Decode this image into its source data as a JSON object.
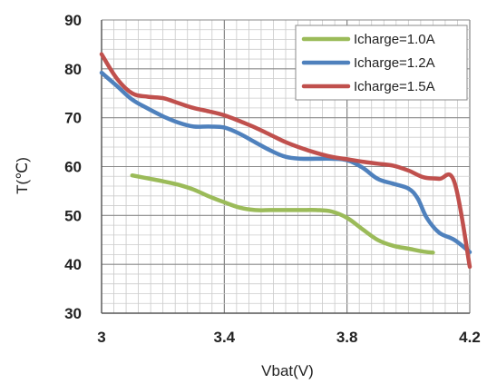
{
  "chart_data": {
    "type": "line",
    "xlabel": "Vbat(V)",
    "ylabel": "T(℃)",
    "xlim": [
      3.0,
      4.2
    ],
    "ylim": [
      30,
      90
    ],
    "x_ticks": [
      "3",
      "3.4",
      "3.8",
      "4.2"
    ],
    "y_ticks": [
      "30",
      "40",
      "50",
      "60",
      "70",
      "80",
      "90"
    ],
    "grid": true,
    "legend_position": "top-right",
    "series": [
      {
        "name": "Icharge=1.0A",
        "color": "#9BBB59",
        "x": [
          3.1,
          3.15,
          3.2,
          3.25,
          3.3,
          3.35,
          3.4,
          3.45,
          3.5,
          3.55,
          3.6,
          3.65,
          3.7,
          3.75,
          3.8,
          3.85,
          3.9,
          3.95,
          4.0,
          4.05,
          4.08
        ],
        "y": [
          58.2,
          57.6,
          57.0,
          56.3,
          55.3,
          53.9,
          52.7,
          51.6,
          51.1,
          51.1,
          51.1,
          51.1,
          51.1,
          50.8,
          49.5,
          47.2,
          45.0,
          43.8,
          43.2,
          42.6,
          42.4
        ]
      },
      {
        "name": "Icharge=1.2A",
        "color": "#4F81BD",
        "x": [
          3.0,
          3.05,
          3.1,
          3.15,
          3.2,
          3.25,
          3.3,
          3.35,
          3.4,
          3.45,
          3.5,
          3.55,
          3.6,
          3.65,
          3.7,
          3.75,
          3.8,
          3.85,
          3.9,
          3.95,
          4.0,
          4.03,
          4.06,
          4.1,
          4.15,
          4.2
        ],
        "y": [
          79.2,
          76.5,
          73.7,
          71.9,
          70.3,
          69.0,
          68.2,
          68.2,
          68.0,
          66.7,
          65.0,
          63.3,
          62.0,
          61.6,
          61.6,
          61.6,
          61.3,
          59.8,
          57.5,
          56.5,
          55.5,
          53.5,
          49.5,
          46.5,
          45.0,
          42.5
        ]
      },
      {
        "name": "Icharge=1.5A",
        "color": "#C0504D",
        "x": [
          3.0,
          3.05,
          3.1,
          3.15,
          3.2,
          3.25,
          3.3,
          3.35,
          3.4,
          3.45,
          3.5,
          3.55,
          3.6,
          3.65,
          3.7,
          3.75,
          3.8,
          3.85,
          3.9,
          3.95,
          4.0,
          4.05,
          4.1,
          4.15,
          4.2
        ],
        "y": [
          83.0,
          78.0,
          75.0,
          74.3,
          74.0,
          73.0,
          72.0,
          71.3,
          70.5,
          69.3,
          68.0,
          66.5,
          65.0,
          63.8,
          62.8,
          62.0,
          61.5,
          61.0,
          60.6,
          60.2,
          59.2,
          57.8,
          57.5,
          56.8,
          39.5
        ]
      }
    ]
  }
}
